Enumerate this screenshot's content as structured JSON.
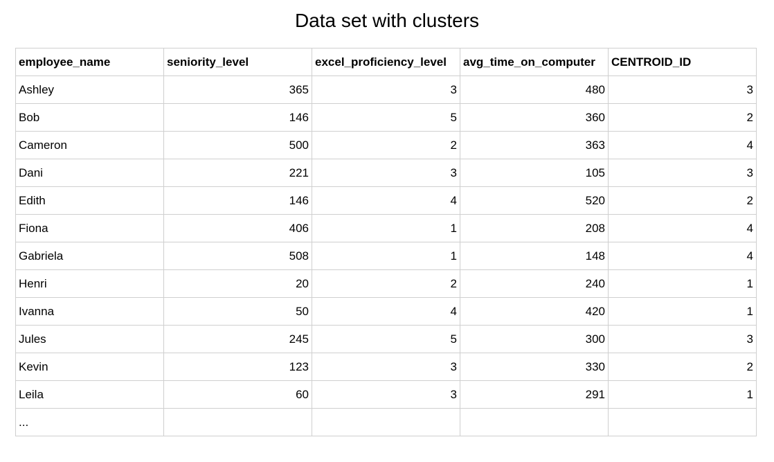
{
  "title": "Data set with clusters",
  "table": {
    "headers": [
      "employee_name",
      "seniority_level",
      "excel_proficiency_level",
      "avg_time_on_computer",
      "CENTROID_ID"
    ],
    "rows": [
      [
        "Ashley",
        "365",
        "3",
        "480",
        "3"
      ],
      [
        "Bob",
        "146",
        "5",
        "360",
        "2"
      ],
      [
        "Cameron",
        "500",
        "2",
        "363",
        "4"
      ],
      [
        "Dani",
        "221",
        "3",
        "105",
        "3"
      ],
      [
        "Edith",
        "146",
        "4",
        "520",
        "2"
      ],
      [
        "Fiona",
        "406",
        "1",
        "208",
        "4"
      ],
      [
        "Gabriela",
        "508",
        "1",
        "148",
        "4"
      ],
      [
        "Henri",
        "20",
        "2",
        "240",
        "1"
      ],
      [
        "Ivanna",
        "50",
        "4",
        "420",
        "1"
      ],
      [
        "Jules",
        "245",
        "5",
        "300",
        "3"
      ],
      [
        "Kevin",
        "123",
        "3",
        "330",
        "2"
      ],
      [
        "Leila",
        "60",
        "3",
        "291",
        "1"
      ],
      [
        "...",
        "",
        "",
        "",
        ""
      ]
    ]
  }
}
